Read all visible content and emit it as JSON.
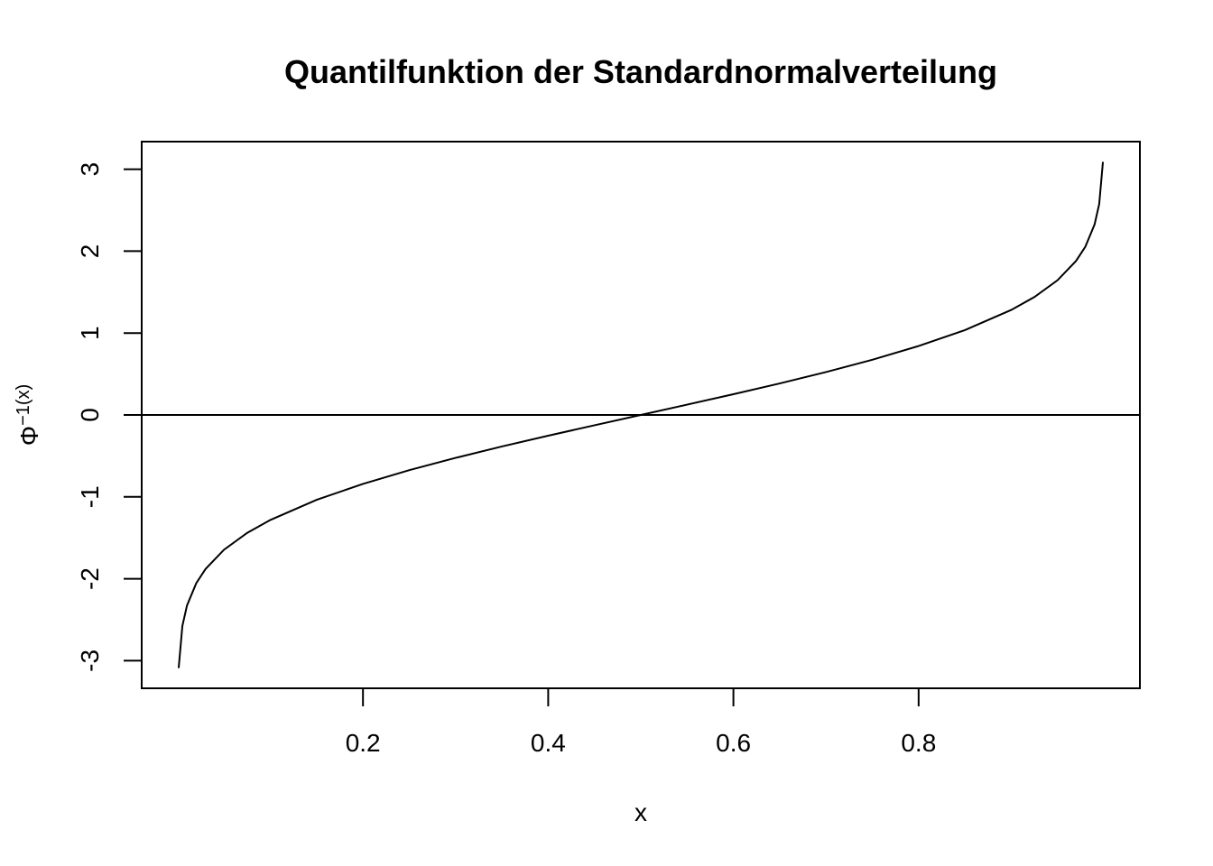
{
  "chart_data": {
    "type": "line",
    "title": "Quantilfunktion der Standardnormalverteilung",
    "xlabel": "x",
    "ylabel": {
      "base": "Φ",
      "superscript": "−1(x)"
    },
    "xlim": [
      0.001,
      0.999
    ],
    "ylim": [
      -3.09,
      3.09
    ],
    "x_ticks": [
      0.2,
      0.4,
      0.6,
      0.8
    ],
    "x_tick_labels": [
      "0.2",
      "0.4",
      "0.6",
      "0.8"
    ],
    "y_ticks": [
      -3,
      -2,
      -1,
      0,
      1,
      2,
      3
    ],
    "y_tick_labels": [
      "-3",
      "-2",
      "-1",
      "0",
      "1",
      "2",
      "3"
    ],
    "reference_line": {
      "y": 0
    },
    "grid": false,
    "legend": "none",
    "series": [
      {
        "function": "standard normal quantile",
        "x": [
          0.001,
          0.005,
          0.01,
          0.02,
          0.03,
          0.05,
          0.075,
          0.1,
          0.15,
          0.2,
          0.25,
          0.3,
          0.35,
          0.4,
          0.45,
          0.5,
          0.55,
          0.6,
          0.65,
          0.7,
          0.75,
          0.8,
          0.85,
          0.9,
          0.925,
          0.95,
          0.97,
          0.98,
          0.99,
          0.995,
          0.999
        ],
        "y": [
          -3.09,
          -2.576,
          -2.326,
          -2.054,
          -1.881,
          -1.645,
          -1.44,
          -1.282,
          -1.036,
          -0.842,
          -0.674,
          -0.524,
          -0.385,
          -0.253,
          -0.126,
          0.0,
          0.126,
          0.253,
          0.385,
          0.524,
          0.674,
          0.842,
          1.036,
          1.282,
          1.44,
          1.645,
          1.881,
          2.054,
          2.326,
          2.576,
          3.09
        ]
      }
    ]
  }
}
